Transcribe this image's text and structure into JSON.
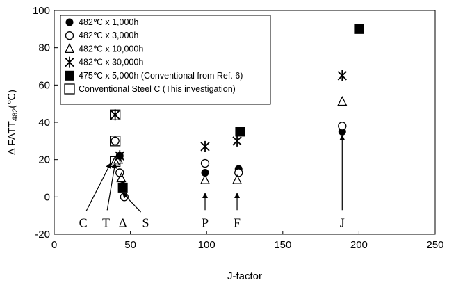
{
  "chart_data": {
    "type": "scatter",
    "title": "",
    "xlabel": "J-factor",
    "ylabel": "Δ FATT482 (℃)",
    "ylabel_main": "Δ FATT",
    "ylabel_sub": "482",
    "ylabel_unit": "(℃)",
    "xlim": [
      0,
      250
    ],
    "ylim": [
      -20,
      100
    ],
    "xticks": [
      "0",
      "50",
      "100",
      "150",
      "200",
      "250"
    ],
    "yticks": [
      "-20",
      "0",
      "20",
      "40",
      "60",
      "80",
      "100"
    ],
    "grid": false,
    "legend_position": "top-left",
    "series": [
      {
        "name": "482℃ x 1,000h",
        "marker": "filled-circle",
        "points": [
          [
            43,
            22
          ],
          [
            45,
            6
          ],
          [
            99,
            13
          ],
          [
            121,
            15
          ],
          [
            189,
            35
          ]
        ]
      },
      {
        "name": "482℃ x 3,000h",
        "marker": "open-circle",
        "points": [
          [
            43,
            13
          ],
          [
            46,
            0
          ],
          [
            99,
            18
          ],
          [
            121,
            13
          ],
          [
            189,
            38
          ]
        ]
      },
      {
        "name": "482℃ x 10,000h",
        "marker": "open-triangle",
        "points": [
          [
            42,
            20
          ],
          [
            44,
            10
          ],
          [
            99,
            9
          ],
          [
            120,
            9
          ],
          [
            189,
            51
          ]
        ]
      },
      {
        "name": "482℃ x 30,000h",
        "marker": "asterisk",
        "points": [
          [
            43,
            22
          ],
          [
            99,
            27
          ],
          [
            120,
            30
          ],
          [
            189,
            65
          ]
        ]
      },
      {
        "name": "475℃ x 5,000h (Conventional from Ref. 6)",
        "marker": "filled-square",
        "points": [
          [
            45,
            5
          ],
          [
            122,
            35
          ],
          [
            200,
            90
          ]
        ]
      },
      {
        "name": "Conventional Steel C (This investigation)",
        "marker": "open-square",
        "points": [
          [
            40,
            19
          ],
          [
            40,
            30
          ],
          [
            40,
            44
          ]
        ]
      },
      {
        "name": "",
        "marker": "asterisk",
        "hidden_in_legend": true,
        "points": [
          [
            40,
            44
          ]
        ]
      },
      {
        "name": "",
        "marker": "open-circle",
        "hidden_in_legend": true,
        "points": [
          [
            40,
            30
          ]
        ]
      },
      {
        "name": "",
        "marker": "open-triangle",
        "hidden_in_legend": true,
        "points": [
          [
            40,
            19
          ]
        ]
      }
    ],
    "annotations": [
      {
        "label": "C",
        "text_at": [
          19,
          -16
        ],
        "arrow_to": [
          37,
          18
        ]
      },
      {
        "label": "T",
        "text_at": [
          34,
          -16
        ],
        "arrow_to": [
          40,
          18
        ]
      },
      {
        "label": "Δ",
        "text_at": [
          45,
          -16
        ],
        "arrow_to": null
      },
      {
        "label": "S",
        "text_at": [
          60,
          -16
        ],
        "arrow_to": [
          45,
          2
        ]
      },
      {
        "label": "P",
        "text_at": [
          99,
          -16
        ],
        "arrow_to": [
          99,
          2
        ]
      },
      {
        "label": "F",
        "text_at": [
          120,
          -16
        ],
        "arrow_to": [
          120,
          2
        ]
      },
      {
        "label": "J",
        "text_at": [
          189,
          -16
        ],
        "arrow_to": [
          189,
          33
        ]
      }
    ]
  }
}
